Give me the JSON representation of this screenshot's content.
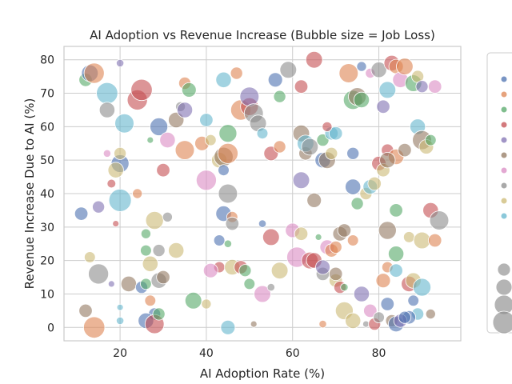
{
  "chart_data": {
    "type": "scatter",
    "title": "AI Adoption vs Revenue Increase (Bubble size = Job Loss)",
    "xlabel": "AI Adoption Rate (%)",
    "ylabel": "Revenue Increase Due to AI (%)",
    "xlim": [
      7,
      99
    ],
    "ylim": [
      -4,
      84
    ],
    "xticks": [
      20,
      40,
      60,
      80
    ],
    "yticks": [
      0,
      10,
      20,
      30,
      40,
      50,
      60,
      70,
      80
    ],
    "grid": true,
    "legend_position": "right",
    "series_colors": [
      "#4c72b0",
      "#dd8452",
      "#55a868",
      "#c44e52",
      "#8172b3",
      "#937860",
      "#da8bc3",
      "#8c8c8c",
      "#ccb974",
      "#64b5cd"
    ],
    "size_legend_levels": [
      1,
      2,
      3,
      4
    ],
    "points": [
      [
        12,
        74,
        2,
        45
      ],
      [
        13,
        76,
        0,
        60
      ],
      [
        14,
        76,
        1,
        75
      ],
      [
        15,
        36,
        4,
        40
      ],
      [
        17,
        70,
        9,
        80
      ],
      [
        17,
        65,
        7,
        55
      ],
      [
        20,
        79,
        4,
        20
      ],
      [
        21,
        61,
        9,
        70
      ],
      [
        20,
        49,
        0,
        65
      ],
      [
        19,
        47,
        8,
        55
      ],
      [
        20,
        52,
        8,
        40
      ],
      [
        17,
        52,
        6,
        20
      ],
      [
        18,
        43,
        3,
        25
      ],
      [
        20,
        38,
        9,
        85
      ],
      [
        19,
        31,
        3,
        15
      ],
      [
        11,
        34,
        0,
        45
      ],
      [
        13,
        21,
        8,
        35
      ],
      [
        15,
        16,
        7,
        75
      ],
      [
        18,
        13,
        4,
        15
      ],
      [
        22,
        13,
        5,
        55
      ],
      [
        12,
        5,
        5,
        45
      ],
      [
        14,
        0,
        1,
        80
      ],
      [
        20,
        6,
        9,
        15
      ],
      [
        20,
        2,
        9,
        20
      ],
      [
        24,
        68,
        3,
        75
      ],
      [
        25,
        71,
        3,
        80
      ],
      [
        27,
        56,
        2,
        15
      ],
      [
        29,
        60,
        0,
        65
      ],
      [
        30,
        47,
        3,
        45
      ],
      [
        31,
        56,
        6,
        55
      ],
      [
        33,
        62,
        5,
        55
      ],
      [
        34,
        66,
        7,
        30
      ],
      [
        35,
        65,
        4,
        55
      ],
      [
        35,
        73,
        1,
        40
      ],
      [
        36,
        71,
        2,
        50
      ],
      [
        35,
        53,
        1,
        70
      ],
      [
        39,
        55,
        1,
        50
      ],
      [
        40,
        62,
        9,
        45
      ],
      [
        40,
        44,
        6,
        75
      ],
      [
        41,
        56,
        8,
        35
      ],
      [
        43,
        50,
        8,
        55
      ],
      [
        44,
        51,
        5,
        70
      ],
      [
        44,
        47,
        0,
        35
      ],
      [
        44,
        74,
        9,
        55
      ],
      [
        45,
        58,
        2,
        65
      ],
      [
        45,
        52,
        1,
        75
      ],
      [
        45,
        40,
        7,
        70
      ],
      [
        44,
        34,
        0,
        55
      ],
      [
        46,
        33,
        1,
        35
      ],
      [
        46,
        31,
        7,
        45
      ],
      [
        24,
        40,
        1,
        30
      ],
      [
        26,
        28,
        2,
        30
      ],
      [
        26,
        23,
        2,
        35
      ],
      [
        27,
        19,
        8,
        55
      ],
      [
        25,
        12,
        0,
        40
      ],
      [
        26,
        13,
        2,
        35
      ],
      [
        27,
        8,
        1,
        35
      ],
      [
        28,
        4,
        0,
        40
      ],
      [
        26,
        2,
        0,
        55
      ],
      [
        28,
        1,
        3,
        70
      ],
      [
        29,
        4,
        2,
        40
      ],
      [
        29,
        14,
        7,
        55
      ],
      [
        30,
        15,
        5,
        45
      ],
      [
        29,
        23,
        7,
        40
      ],
      [
        28,
        32,
        8,
        65
      ],
      [
        31,
        33,
        7,
        30
      ],
      [
        33,
        23,
        8,
        55
      ],
      [
        37,
        8,
        2,
        60
      ],
      [
        40,
        7,
        8,
        30
      ],
      [
        43,
        26,
        0,
        35
      ],
      [
        43,
        18,
        3,
        35
      ],
      [
        41,
        17,
        6,
        50
      ],
      [
        46,
        18,
        8,
        55
      ],
      [
        45,
        25,
        2,
        20
      ],
      [
        45,
        0,
        9,
        50
      ],
      [
        47,
        76,
        1,
        40
      ],
      [
        48,
        65,
        1,
        75
      ],
      [
        50,
        66,
        3,
        65
      ],
      [
        50,
        69,
        4,
        70
      ],
      [
        51,
        64,
        7,
        70
      ],
      [
        52,
        61,
        7,
        60
      ],
      [
        53,
        58,
        9,
        35
      ],
      [
        55,
        52,
        3,
        50
      ],
      [
        57,
        54,
        1,
        40
      ],
      [
        56,
        74,
        0,
        50
      ],
      [
        57,
        69,
        2,
        40
      ],
      [
        59,
        77,
        7,
        60
      ],
      [
        62,
        72,
        3,
        45
      ],
      [
        65,
        80,
        3,
        60
      ],
      [
        62,
        58,
        5,
        60
      ],
      [
        62,
        44,
        4,
        60
      ],
      [
        63,
        52,
        5,
        45
      ],
      [
        63,
        55,
        9,
        60
      ],
      [
        64,
        54,
        7,
        60
      ],
      [
        65,
        38,
        5,
        50
      ],
      [
        67,
        50,
        0,
        55
      ],
      [
        67,
        56,
        2,
        40
      ],
      [
        68,
        50,
        5,
        60
      ],
      [
        69,
        58,
        9,
        45
      ],
      [
        69,
        52,
        8,
        40
      ],
      [
        48,
        18,
        3,
        45
      ],
      [
        49,
        17,
        2,
        40
      ],
      [
        50,
        13,
        2,
        35
      ],
      [
        51,
        1,
        5,
        15
      ],
      [
        53,
        10,
        6,
        60
      ],
      [
        53,
        31,
        0,
        20
      ],
      [
        55,
        27,
        3,
        60
      ],
      [
        55,
        12,
        7,
        20
      ],
      [
        57,
        17,
        8,
        60
      ],
      [
        60,
        29,
        6,
        50
      ],
      [
        61,
        21,
        6,
        75
      ],
      [
        62,
        28,
        8,
        45
      ],
      [
        64,
        20,
        3,
        60
      ],
      [
        65,
        20,
        3,
        55
      ],
      [
        66,
        27,
        2,
        15
      ],
      [
        67,
        16,
        7,
        45
      ],
      [
        67,
        18,
        4,
        50
      ],
      [
        68,
        24,
        6,
        50
      ],
      [
        69,
        23,
        1,
        45
      ],
      [
        70,
        14,
        8,
        45
      ],
      [
        71,
        28,
        5,
        50
      ],
      [
        71,
        12,
        3,
        40
      ],
      [
        72,
        29,
        5,
        45
      ],
      [
        72,
        5,
        8,
        65
      ],
      [
        67,
        1,
        1,
        20
      ],
      [
        73,
        76,
        1,
        70
      ],
      [
        74,
        68,
        2,
        70
      ],
      [
        75,
        69,
        5,
        65
      ],
      [
        76,
        68,
        2,
        55
      ],
      [
        78,
        76,
        6,
        30
      ],
      [
        80,
        77,
        7,
        55
      ],
      [
        81,
        66,
        4,
        45
      ],
      [
        82,
        71,
        9,
        60
      ],
      [
        83,
        79,
        3,
        55
      ],
      [
        84,
        78,
        1,
        50
      ],
      [
        85,
        74,
        6,
        55
      ],
      [
        86,
        78,
        1,
        60
      ],
      [
        88,
        73,
        2,
        60
      ],
      [
        89,
        75,
        8,
        40
      ],
      [
        90,
        72,
        4,
        40
      ],
      [
        93,
        72,
        6,
        45
      ],
      [
        82,
        53,
        3,
        40
      ],
      [
        84,
        51,
        1,
        55
      ],
      [
        86,
        53,
        5,
        45
      ],
      [
        89,
        60,
        9,
        55
      ],
      [
        90,
        56,
        5,
        70
      ],
      [
        91,
        54,
        8,
        50
      ],
      [
        92,
        56,
        2,
        35
      ],
      [
        74,
        52,
        0,
        40
      ],
      [
        77,
        40,
        8,
        40
      ],
      [
        74,
        42,
        0,
        55
      ],
      [
        75,
        37,
        2,
        40
      ],
      [
        78,
        42,
        9,
        50
      ],
      [
        79,
        43,
        8,
        45
      ],
      [
        80,
        49,
        3,
        50
      ],
      [
        81,
        47,
        8,
        45
      ],
      [
        82,
        50,
        5,
        55
      ],
      [
        84,
        35,
        2,
        45
      ],
      [
        87,
        27,
        8,
        35
      ],
      [
        90,
        26,
        8,
        60
      ],
      [
        92,
        35,
        3,
        55
      ],
      [
        93,
        26,
        1,
        45
      ],
      [
        94,
        32,
        7,
        70
      ],
      [
        82,
        29,
        5,
        65
      ],
      [
        84,
        22,
        2,
        55
      ],
      [
        82,
        18,
        1,
        35
      ],
      [
        81,
        14,
        1,
        50
      ],
      [
        84,
        17,
        9,
        45
      ],
      [
        87,
        13,
        3,
        55
      ],
      [
        88,
        14,
        8,
        55
      ],
      [
        90,
        12,
        9,
        65
      ],
      [
        88,
        8,
        0,
        35
      ],
      [
        92,
        4,
        5,
        30
      ],
      [
        89,
        4,
        9,
        40
      ],
      [
        87,
        3,
        0,
        45
      ],
      [
        74,
        2,
        8,
        55
      ],
      [
        76,
        10,
        4,
        55
      ],
      [
        77,
        1,
        7,
        15
      ],
      [
        78,
        5,
        6,
        45
      ],
      [
        79,
        1,
        3,
        40
      ],
      [
        80,
        3,
        7,
        35
      ],
      [
        82,
        7,
        0,
        45
      ],
      [
        83,
        2,
        5,
        40
      ],
      [
        84,
        1,
        0,
        55
      ],
      [
        85,
        2,
        4,
        45
      ],
      [
        86,
        3,
        0,
        40
      ],
      [
        70,
        16,
        5,
        45
      ],
      [
        72,
        12,
        2,
        20
      ],
      [
        70,
        24,
        1,
        40
      ],
      [
        74,
        26,
        1,
        35
      ],
      [
        70,
        58,
        9,
        45
      ],
      [
        68,
        60,
        3,
        30
      ],
      [
        76,
        78,
        0,
        30
      ]
    ]
  }
}
